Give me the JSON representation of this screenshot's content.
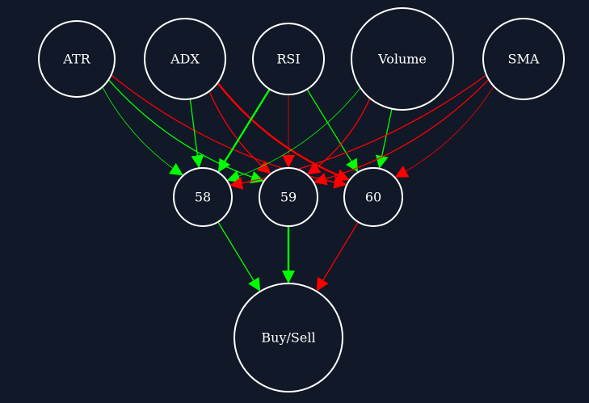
{
  "colors": {
    "background": "#111827",
    "node_stroke": "#ffffff",
    "positive": "#00ff00",
    "negative": "#ff0000"
  },
  "nodes": {
    "atr": {
      "label": "ATR"
    },
    "adx": {
      "label": "ADX"
    },
    "rsi": {
      "label": "RSI"
    },
    "volume": {
      "label": "Volume"
    },
    "sma": {
      "label": "SMA"
    },
    "h58": {
      "label": "58"
    },
    "h59": {
      "label": "59"
    },
    "h60": {
      "label": "60"
    },
    "out": {
      "label": "Buy/Sell"
    }
  },
  "edges": [
    {
      "from": "atr",
      "to": "h58",
      "sign": "positive",
      "strength": "weak"
    },
    {
      "from": "atr",
      "to": "h59",
      "sign": "positive",
      "strength": "medium"
    },
    {
      "from": "atr",
      "to": "h60",
      "sign": "negative",
      "strength": "medium"
    },
    {
      "from": "adx",
      "to": "h58",
      "sign": "positive",
      "strength": "medium"
    },
    {
      "from": "adx",
      "to": "h59",
      "sign": "negative",
      "strength": "medium"
    },
    {
      "from": "adx",
      "to": "h60",
      "sign": "negative",
      "strength": "strong"
    },
    {
      "from": "rsi",
      "to": "h58",
      "sign": "positive",
      "strength": "strong"
    },
    {
      "from": "rsi",
      "to": "h59",
      "sign": "negative",
      "strength": "weak"
    },
    {
      "from": "rsi",
      "to": "h60",
      "sign": "positive",
      "strength": "medium"
    },
    {
      "from": "volume",
      "to": "h58",
      "sign": "positive",
      "strength": "weak"
    },
    {
      "from": "volume",
      "to": "h59",
      "sign": "negative",
      "strength": "medium"
    },
    {
      "from": "volume",
      "to": "h60",
      "sign": "positive",
      "strength": "medium"
    },
    {
      "from": "sma",
      "to": "h58",
      "sign": "negative",
      "strength": "medium"
    },
    {
      "from": "sma",
      "to": "h59",
      "sign": "negative",
      "strength": "medium"
    },
    {
      "from": "sma",
      "to": "h60",
      "sign": "negative",
      "strength": "weak"
    },
    {
      "from": "h58",
      "to": "out",
      "sign": "positive",
      "strength": "medium"
    },
    {
      "from": "h59",
      "to": "out",
      "sign": "positive",
      "strength": "strong"
    },
    {
      "from": "h60",
      "to": "out",
      "sign": "negative",
      "strength": "medium"
    }
  ]
}
